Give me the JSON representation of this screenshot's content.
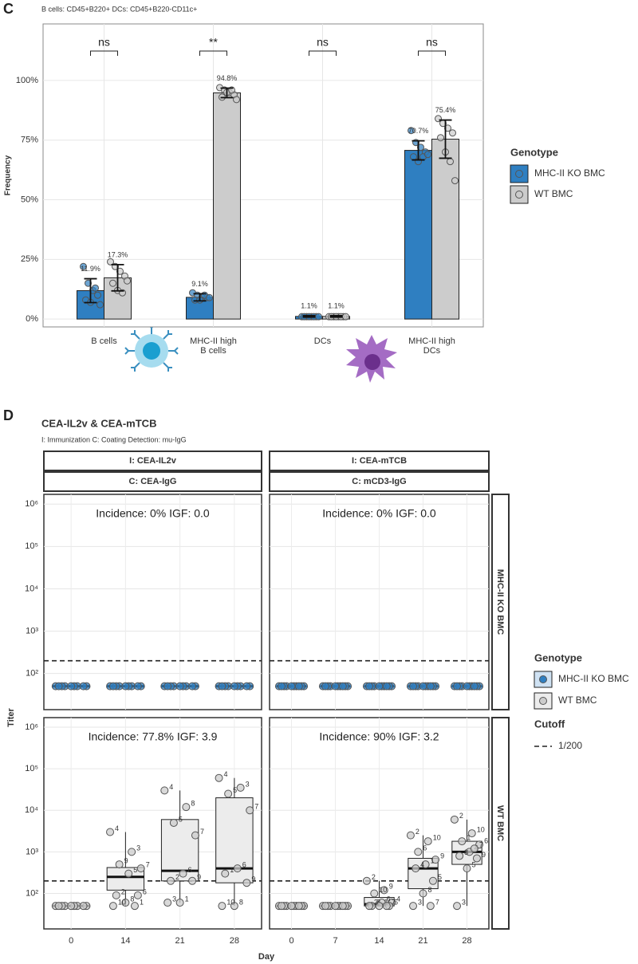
{
  "chart_data": [
    {
      "type": "bar",
      "panel_label": "C",
      "subtitle": "B cells: CD45+B220+   DCs: CD45+B220-CD11c+",
      "y_label": "Frequency",
      "categories": [
        [
          "B cells"
        ],
        [
          "MHC-II high",
          "B cells"
        ],
        [
          "DCs"
        ],
        [
          "MHC-II high",
          "DCs"
        ]
      ],
      "significance": [
        "ns",
        "**",
        "ns",
        "ns"
      ],
      "ylim": [
        -3.3,
        123.7
      ],
      "yticks": [
        {
          "value": 0,
          "label": "0%"
        },
        {
          "value": 25,
          "label": "25%"
        },
        {
          "value": 50,
          "label": "50%"
        },
        {
          "value": 75,
          "label": "75%"
        },
        {
          "value": 100,
          "label": "100%"
        }
      ],
      "grid": true,
      "legend_title": "Genotype",
      "legend_position": "right",
      "series": [
        {
          "name": "MHC-II KO BMC",
          "color": "#2f7fc1",
          "values": [
            11.9,
            9.1,
            1.1,
            70.7
          ],
          "value_labels": [
            "11.9%",
            "9.1%",
            "1.1%",
            "70.7%"
          ],
          "errors": [
            5,
            1.5,
            0.3,
            4
          ],
          "points": [
            [
              22,
              15,
              12,
              10,
              8,
              7,
              13,
              6
            ],
            [
              11,
              10,
              9,
              9,
              8,
              8,
              10,
              9
            ],
            [
              1,
              1,
              1,
              1,
              1,
              1,
              1,
              1
            ],
            [
              79,
              74,
              72,
              70,
              68,
              66,
              68,
              69
            ]
          ]
        },
        {
          "name": "WT BMC",
          "color": "#cccccc",
          "values": [
            17.3,
            94.8,
            1.1,
            75.4
          ],
          "value_labels": [
            "17.3%",
            "94.8%",
            "1.1%",
            "75.4%"
          ],
          "errors": [
            5.5,
            2,
            0.3,
            8
          ],
          "points": [
            [
              24,
              22,
              20,
              18,
              15,
              12,
              11,
              16
            ],
            [
              97,
              96,
              95,
              94,
              93,
              95,
              96,
              92
            ],
            [
              1,
              1,
              1,
              1,
              1,
              1,
              1,
              1
            ],
            [
              84,
              82,
              80,
              78,
              76,
              70,
              66,
              58
            ]
          ]
        }
      ]
    },
    {
      "type": "box",
      "panel_label": "D",
      "title": "CEA-IL2v & CEA-mTCB",
      "subtitle": "I: Immunization   C: Coating   Detection: mu-IgG",
      "x_label": "Day",
      "y_label": "Titer",
      "log_scale": true,
      "ylim": [
        14,
        1700000
      ],
      "yticks": [
        {
          "value": 100,
          "label": "10²"
        },
        {
          "value": 1000,
          "label": "10³"
        },
        {
          "value": 10000,
          "label": "10⁴"
        },
        {
          "value": 100000,
          "label": "10⁵"
        },
        {
          "value": 1000000,
          "label": "10⁶"
        }
      ],
      "grid": true,
      "legend_title": "Genotype",
      "cutoff_title": "Cutoff",
      "cutoff": {
        "value": 200,
        "label": "1/200"
      },
      "series": [
        {
          "name": "MHC-II KO BMC",
          "color": "#2f7fc1"
        },
        {
          "name": "WT BMC",
          "color": "#cccccc"
        }
      ],
      "columns": [
        {
          "immunization": "I: CEA-IL2v",
          "coating": "C: CEA-IgG",
          "x": [
            0,
            14,
            21,
            28
          ]
        },
        {
          "immunization": "I: CEA-mTCB",
          "coating": "C: mCD3-IgG",
          "x": [
            0,
            7,
            14,
            21,
            28
          ]
        }
      ],
      "rows": [
        {
          "name": "MHC-II KO BMC",
          "panels": [
            {
              "annotation": "Incidence: 0% IGF: 0.0",
              "boxes": [
                {
                  "low": 50,
                  "q1": 50,
                  "median": 50,
                  "q3": 50,
                  "high": 50
                },
                {
                  "low": 50,
                  "q1": 50,
                  "median": 50,
                  "q3": 50,
                  "high": 50
                },
                {
                  "low": 50,
                  "q1": 50,
                  "median": 50,
                  "q3": 50,
                  "high": 50
                },
                {
                  "low": 50,
                  "q1": 50,
                  "median": 50,
                  "q3": 50,
                  "high": 50
                }
              ],
              "points": [
                {
                  "values": [
                    50,
                    50,
                    50,
                    50,
                    50,
                    50,
                    50,
                    50,
                    50
                  ]
                },
                {
                  "values": [
                    50,
                    50,
                    50,
                    50,
                    50,
                    50,
                    50,
                    50,
                    50
                  ]
                },
                {
                  "values": [
                    50,
                    50,
                    50,
                    50,
                    50,
                    50,
                    50,
                    50,
                    50
                  ]
                },
                {
                  "values": [
                    50,
                    50,
                    50,
                    50,
                    50,
                    50,
                    50,
                    50,
                    50
                  ]
                }
              ]
            },
            {
              "annotation": "Incidence: 0% IGF: 0.0",
              "boxes": [
                {
                  "low": 50,
                  "q1": 50,
                  "median": 50,
                  "q3": 50,
                  "high": 50
                },
                {
                  "low": 50,
                  "q1": 50,
                  "median": 50,
                  "q3": 50,
                  "high": 50
                },
                {
                  "low": 50,
                  "q1": 50,
                  "median": 50,
                  "q3": 50,
                  "high": 50
                },
                {
                  "low": 50,
                  "q1": 50,
                  "median": 50,
                  "q3": 50,
                  "high": 50
                },
                {
                  "low": 50,
                  "q1": 50,
                  "median": 50,
                  "q3": 50,
                  "high": 50
                }
              ],
              "points": [
                {
                  "values": [
                    50,
                    50,
                    50,
                    50,
                    50,
                    50,
                    50,
                    50,
                    50,
                    50
                  ]
                },
                {
                  "values": [
                    50,
                    50,
                    50,
                    50,
                    50,
                    50,
                    50,
                    50,
                    50,
                    50
                  ]
                },
                {
                  "values": [
                    50,
                    50,
                    50,
                    50,
                    50,
                    50,
                    50,
                    50,
                    50,
                    50
                  ]
                },
                {
                  "values": [
                    50,
                    50,
                    50,
                    50,
                    50,
                    50,
                    50,
                    50,
                    50,
                    50
                  ]
                },
                {
                  "values": [
                    50,
                    50,
                    50,
                    50,
                    50,
                    50,
                    50,
                    50,
                    50,
                    50
                  ]
                }
              ]
            }
          ]
        },
        {
          "name": "WT BMC",
          "panels": [
            {
              "annotation": "Incidence: 77.8% IGF: 3.9",
              "boxes": [
                {
                  "low": 50,
                  "q1": 50,
                  "median": 50,
                  "q3": 50,
                  "high": 50
                },
                {
                  "low": 50,
                  "q1": 120,
                  "median": 250,
                  "q3": 420,
                  "high": 3000
                },
                {
                  "low": 60,
                  "q1": 200,
                  "median": 350,
                  "q3": 6000,
                  "high": 30000
                },
                {
                  "low": 50,
                  "q1": 180,
                  "median": 400,
                  "q3": 20000,
                  "high": 60000
                }
              ],
              "points": [
                {
                  "values": [
                    50,
                    50,
                    50,
                    50,
                    50,
                    50,
                    50,
                    50,
                    50
                  ]
                },
                {
                  "values": [
                    3000,
                    1000,
                    500,
                    400,
                    300,
                    90,
                    90,
                    60,
                    50,
                    50
                  ],
                  "labels": [
                    4,
                    3,
                    9,
                    7,
                    5,
                    2,
                    6,
                    8,
                    10,
                    1
                  ]
                },
                {
                  "values": [
                    30000,
                    12000,
                    5000,
                    2500,
                    300,
                    200,
                    200,
                    60,
                    60
                  ],
                  "labels": [
                    4,
                    8,
                    5,
                    7,
                    6,
                    2,
                    9,
                    1,
                    3
                  ]
                },
                {
                  "values": [
                    60000,
                    35000,
                    25000,
                    10000,
                    400,
                    300,
                    180,
                    50,
                    50
                  ],
                  "labels": [
                    4,
                    3,
                    5,
                    7,
                    6,
                    1,
                    9,
                    8,
                    10
                  ]
                }
              ]
            },
            {
              "annotation": "Incidence: 90% IGF: 3.2",
              "boxes": [
                {
                  "low": 50,
                  "q1": 50,
                  "median": 50,
                  "q3": 50,
                  "high": 50
                },
                {
                  "low": 50,
                  "q1": 50,
                  "median": 50,
                  "q3": 50,
                  "high": 50
                },
                {
                  "low": 50,
                  "q1": 50,
                  "median": 55,
                  "q3": 80,
                  "high": 200
                },
                {
                  "low": 50,
                  "q1": 130,
                  "median": 400,
                  "q3": 700,
                  "high": 2500
                },
                {
                  "low": 50,
                  "q1": 500,
                  "median": 1000,
                  "q3": 1800,
                  "high": 6000
                }
              ],
              "points": [
                {
                  "values": [
                    50,
                    50,
                    50,
                    50,
                    50,
                    50,
                    50,
                    50,
                    50,
                    50
                  ]
                },
                {
                  "values": [
                    50,
                    50,
                    50,
                    50,
                    50,
                    50,
                    50,
                    50,
                    50,
                    50
                  ]
                },
                {
                  "values": [
                    200,
                    120,
                    100,
                    60,
                    60,
                    50,
                    50,
                    50,
                    50,
                    50
                  ],
                  "labels": [
                    2,
                    9,
                    10,
                    4,
                    6,
                    8,
                    5,
                    1,
                    3,
                    7
                  ]
                },
                {
                  "values": [
                    2500,
                    1800,
                    1000,
                    650,
                    500,
                    400,
                    200,
                    100,
                    50,
                    50
                  ],
                  "labels": [
                    2,
                    10,
                    6,
                    9,
                    1,
                    4,
                    5,
                    8,
                    3,
                    7
                  ]
                },
                {
                  "values": [
                    6000,
                    2800,
                    1800,
                    1500,
                    1000,
                    800,
                    700,
                    400,
                    50,
                    1200
                  ],
                  "labels": [
                    2,
                    10,
                    1,
                    6,
                    4,
                    8,
                    9,
                    5,
                    3,
                    7
                  ]
                }
              ]
            }
          ]
        }
      ]
    }
  ]
}
